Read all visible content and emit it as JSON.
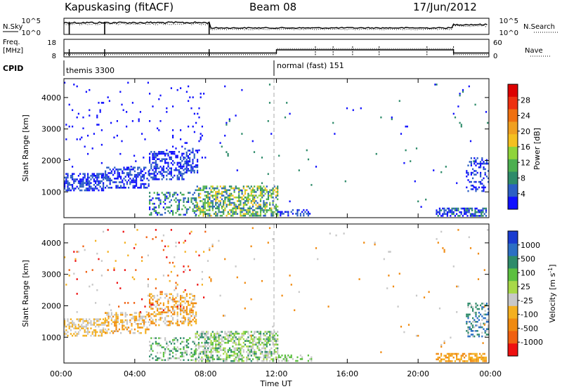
{
  "header": {
    "station": "Kapuskasing (fitACF)",
    "beam": "Beam 08",
    "date": "17/Jun/2012"
  },
  "params": {
    "nsky_label": "N.Sky",
    "nsearch_label": "N.Search",
    "freq_label_1": "Freq.",
    "freq_label_2": "[MHz]",
    "nave_label": "Nave",
    "cpid_label": "CPID",
    "pow_ticks": [
      "10^5",
      "10^0"
    ],
    "freq_ticks": [
      "18",
      "8"
    ],
    "nave_ticks": [
      "60",
      "0"
    ],
    "cpid_segments": [
      {
        "start_hour": 0,
        "end_hour": 12,
        "label": "themis 3300"
      },
      {
        "start_hour": 12,
        "end_hour": 24,
        "label": "normal (fast) 151"
      }
    ],
    "freq_mhz": [
      {
        "start_hour": 0,
        "end_hour": 12,
        "value": 10.2
      },
      {
        "start_hour": 12,
        "end_hour": 22,
        "value": 12.0
      },
      {
        "start_hour": 22,
        "end_hour": 24,
        "value": 10.2
      }
    ],
    "nave": [
      {
        "start_hour": 0,
        "end_hour": 12,
        "value": 8
      },
      {
        "start_hour": 12,
        "end_hour": 22,
        "value": 28
      },
      {
        "start_hour": 22,
        "end_hour": 24,
        "value": 8
      }
    ]
  },
  "chart_data": [
    {
      "type": "heatmap",
      "name": "power",
      "xlabel": "",
      "ylabel": "Slant Range [km]",
      "xlim": [
        0,
        24
      ],
      "ylim": [
        180,
        4600
      ],
      "yticks": [
        1000,
        2000,
        3000,
        4000
      ],
      "colorbar_label": "Power [dB]",
      "colorbar_ticks": [
        "4",
        "8",
        "12",
        "16",
        "20",
        "24",
        "28"
      ],
      "colorbar_colors": [
        "#1010ff",
        "#2c5fc4",
        "#2e8b6a",
        "#4caf50",
        "#8fd43a",
        "#f4c020",
        "#f0a020",
        "#f07010",
        "#ee3010",
        "#dd0000"
      ],
      "regions": [
        {
          "t0": 0.0,
          "t1": 2.3,
          "r0": 1050,
          "r1": 1600,
          "density": 0.55,
          "levels": [
            0,
            1
          ]
        },
        {
          "t0": 2.3,
          "t1": 4.8,
          "r0": 1150,
          "r1": 1800,
          "density": 0.5,
          "levels": [
            0,
            1
          ]
        },
        {
          "t0": 4.8,
          "t1": 6.8,
          "r0": 1400,
          "r1": 2300,
          "density": 0.45,
          "levels": [
            0,
            1
          ]
        },
        {
          "t0": 6.8,
          "t1": 7.5,
          "r0": 1600,
          "r1": 2400,
          "density": 0.5,
          "levels": [
            0,
            1
          ]
        },
        {
          "t0": 4.8,
          "t1": 7.5,
          "r0": 250,
          "r1": 1000,
          "density": 0.35,
          "levels": [
            0,
            1,
            2,
            3
          ]
        },
        {
          "t0": 7.4,
          "t1": 12.1,
          "r0": 250,
          "r1": 1200,
          "density": 0.55,
          "levels": [
            1,
            2,
            3,
            4,
            5
          ]
        },
        {
          "t0": 12.1,
          "t1": 14.0,
          "r0": 250,
          "r1": 450,
          "density": 0.35,
          "levels": [
            0,
            1
          ]
        },
        {
          "t0": 21.0,
          "t1": 23.8,
          "r0": 250,
          "r1": 500,
          "density": 0.6,
          "levels": [
            0,
            1,
            2
          ]
        },
        {
          "t0": 22.7,
          "t1": 24.0,
          "r0": 1000,
          "r1": 2100,
          "density": 0.35,
          "levels": [
            0,
            1
          ]
        },
        {
          "t0": 0.0,
          "t1": 8.0,
          "r0": 1800,
          "r1": 4500,
          "density": 0.025,
          "levels": [
            0
          ]
        },
        {
          "t0": 8.0,
          "t1": 24.0,
          "r0": 500,
          "r1": 4500,
          "density": 0.006,
          "levels": [
            0,
            2
          ]
        }
      ]
    },
    {
      "type": "heatmap",
      "name": "velocity",
      "xlabel": "Time UT",
      "ylabel": "Slant Range [km]",
      "xlim": [
        0,
        24
      ],
      "ylim": [
        180,
        4600
      ],
      "yticks": [
        1000,
        2000,
        3000,
        4000
      ],
      "xticks": [
        "00:00",
        "04:00",
        "08:00",
        "12:00",
        "16:00",
        "20:00",
        "00:00"
      ],
      "colorbar_label": "Velocity [m s^-1]",
      "colorbar_ticks": [
        "1000",
        "500",
        "100",
        "25",
        "-25",
        "-100",
        "-500",
        "-1000"
      ],
      "colorbar_colors": [
        "#1a3cd0",
        "#2c6fc4",
        "#2e8b6a",
        "#5cc040",
        "#a8d848",
        "#c8c8c8",
        "#f4b020",
        "#f08a10",
        "#f06010",
        "#ee1010"
      ],
      "regions": [
        {
          "t0": 0.0,
          "t1": 2.3,
          "r0": 1050,
          "r1": 1600,
          "density": 0.5,
          "levels": [
            5,
            6
          ]
        },
        {
          "t0": 2.3,
          "t1": 4.8,
          "r0": 1150,
          "r1": 1800,
          "density": 0.45,
          "levels": [
            5,
            6,
            7
          ]
        },
        {
          "t0": 4.8,
          "t1": 7.5,
          "r0": 1400,
          "r1": 2400,
          "density": 0.45,
          "levels": [
            5,
            6,
            7
          ]
        },
        {
          "t0": 4.8,
          "t1": 7.5,
          "r0": 250,
          "r1": 1000,
          "density": 0.3,
          "levels": [
            2,
            3,
            5
          ]
        },
        {
          "t0": 7.4,
          "t1": 12.1,
          "r0": 250,
          "r1": 1200,
          "density": 0.55,
          "levels": [
            2,
            3,
            4,
            5,
            5
          ]
        },
        {
          "t0": 12.1,
          "t1": 14.0,
          "r0": 250,
          "r1": 450,
          "density": 0.35,
          "levels": [
            3,
            5
          ]
        },
        {
          "t0": 21.0,
          "t1": 23.8,
          "r0": 250,
          "r1": 500,
          "density": 0.6,
          "levels": [
            6,
            7
          ]
        },
        {
          "t0": 22.7,
          "t1": 24.0,
          "r0": 1000,
          "r1": 2100,
          "density": 0.35,
          "levels": [
            1,
            2,
            5
          ]
        },
        {
          "t0": 0.0,
          "t1": 8.0,
          "r0": 1800,
          "r1": 4500,
          "density": 0.025,
          "levels": [
            5,
            6,
            8,
            9
          ]
        },
        {
          "t0": 8.0,
          "t1": 24.0,
          "r0": 500,
          "r1": 4500,
          "density": 0.006,
          "levels": [
            5,
            7
          ]
        }
      ]
    }
  ]
}
